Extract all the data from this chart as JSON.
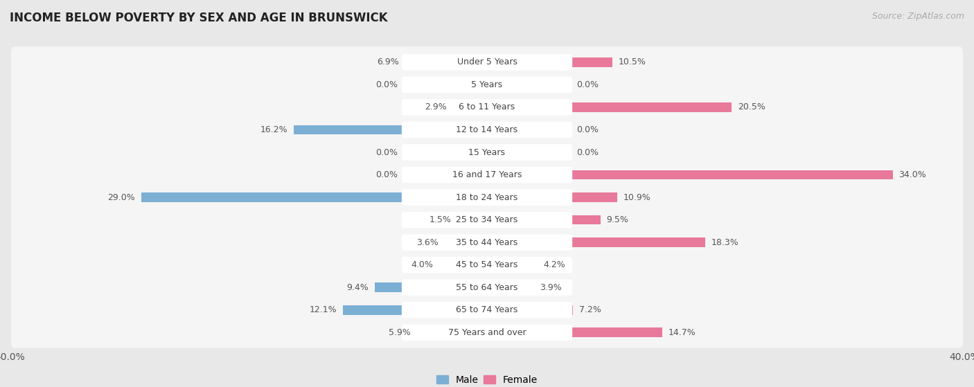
{
  "title": "INCOME BELOW POVERTY BY SEX AND AGE IN BRUNSWICK",
  "source": "Source: ZipAtlas.com",
  "categories": [
    "Under 5 Years",
    "5 Years",
    "6 to 11 Years",
    "12 to 14 Years",
    "15 Years",
    "16 and 17 Years",
    "18 to 24 Years",
    "25 to 34 Years",
    "35 to 44 Years",
    "45 to 54 Years",
    "55 to 64 Years",
    "65 to 74 Years",
    "75 Years and over"
  ],
  "male": [
    6.9,
    0.0,
    2.9,
    16.2,
    0.0,
    0.0,
    29.0,
    1.5,
    3.6,
    4.0,
    9.4,
    12.1,
    5.9
  ],
  "female": [
    10.5,
    0.0,
    20.5,
    0.0,
    0.0,
    34.0,
    10.9,
    9.5,
    18.3,
    4.2,
    3.9,
    7.2,
    14.7
  ],
  "male_color": "#7bafd4",
  "female_color": "#e8799a",
  "male_label_bg": "#92b4d4",
  "female_label_bg": "#e8849a",
  "male_label": "Male",
  "female_label": "Female",
  "xlim": 40.0,
  "min_bar": 2.5,
  "bg_color": "#e8e8e8",
  "bar_bg_color": "#f5f5f5",
  "row_bg_color": "#ebebeb",
  "title_fontsize": 12,
  "tick_fontsize": 10,
  "label_fontsize": 9,
  "value_fontsize": 9,
  "source_fontsize": 9
}
